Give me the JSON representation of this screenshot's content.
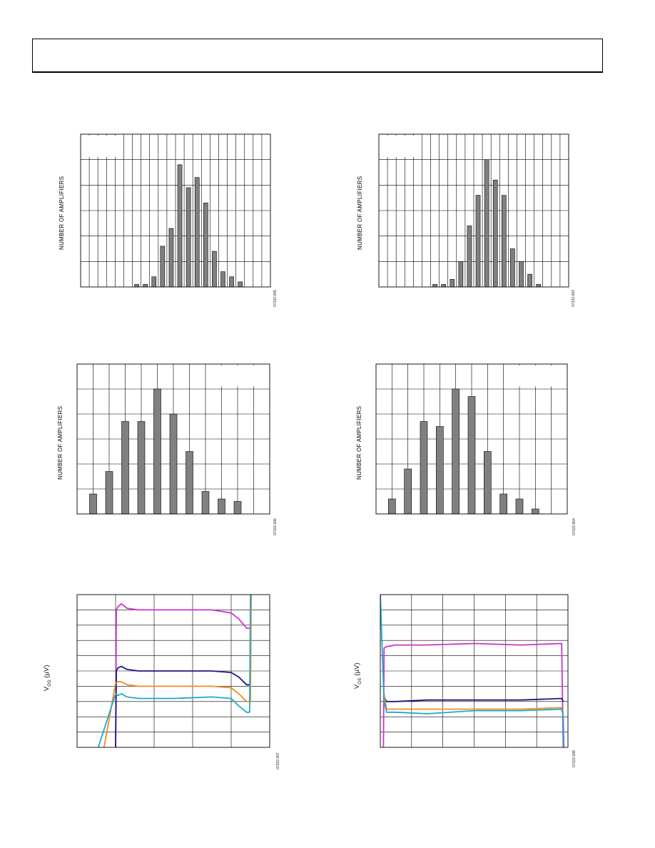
{
  "page": {
    "colors": {
      "bar_fill": "#808080",
      "grid": "#000000",
      "magenta": "#cc33cc",
      "navy": "#1a1a80",
      "orange": "#f08c1e",
      "cyan": "#1ea8c8"
    }
  },
  "chart_data": [
    {
      "type": "bar",
      "ylabel": "NUMBER OF AMPLIFIERS",
      "figure_id": "07322-005",
      "x": [
        6.5,
        7.5,
        8.5,
        9.5,
        10.5,
        11.5,
        12.5,
        13.5,
        14.5,
        15.5,
        16.5,
        17.5,
        18.5
      ],
      "values": [
        1,
        1,
        4,
        16,
        23,
        48,
        39,
        43,
        33,
        14,
        6,
        4,
        2
      ],
      "xlim": [
        0,
        22
      ],
      "ylim": [
        0,
        60
      ],
      "x_gridlines": 22,
      "y_gridlines": 6,
      "grid": true
    },
    {
      "type": "bar",
      "ylabel": "NUMBER OF AMPLIFIERS",
      "figure_id": "07322-003",
      "x": [
        6.5,
        7.5,
        8.5,
        9.5,
        10.5,
        11.5,
        12.5,
        13.5,
        14.5,
        15.5,
        16.5,
        17.5,
        18.5
      ],
      "values": [
        1,
        1,
        3,
        10,
        24,
        36,
        50,
        42,
        36,
        15,
        10,
        5,
        1
      ],
      "xlim": [
        0,
        22
      ],
      "ylim": [
        0,
        60
      ],
      "x_gridlines": 22,
      "y_gridlines": 6,
      "grid": true
    },
    {
      "type": "bar",
      "ylabel": "NUMBER OF AMPLIFIERS",
      "figure_id": "07322-006",
      "x": [
        1,
        2,
        3,
        4,
        5,
        6,
        7,
        8,
        9,
        10
      ],
      "values": [
        8,
        17,
        37,
        37,
        50,
        40,
        25,
        9,
        6,
        5
      ],
      "xlim": [
        0,
        12
      ],
      "ylim": [
        0,
        60
      ],
      "x_gridlines": 12,
      "y_gridlines": 6,
      "grid": true
    },
    {
      "type": "bar",
      "ylabel": "NUMBER OF AMPLIFIERS",
      "figure_id": "07322-004",
      "x": [
        1,
        2,
        3,
        4,
        5,
        6,
        7,
        8,
        9,
        10
      ],
      "values": [
        6,
        18,
        37,
        35,
        50,
        47,
        25,
        8,
        6,
        2
      ],
      "xlim": [
        0,
        12
      ],
      "ylim": [
        0,
        60
      ],
      "x_gridlines": 12,
      "y_gridlines": 6,
      "grid": true
    },
    {
      "type": "line",
      "ylabel_main": "V",
      "ylabel_sub": "OS",
      "ylabel_unit": " (µV)",
      "figure_id": "07322-007",
      "xlim": [
        0,
        5
      ],
      "ylim": [
        -40,
        60
      ],
      "x_gridlines": 5,
      "y_gridlines": 10,
      "grid": true,
      "series": [
        {
          "color": "#cc33cc",
          "x": [
            1.0,
            1.02,
            1.06,
            1.15,
            1.3,
            1.6,
            2.5,
            3.5,
            4.0,
            4.2,
            4.4,
            4.5,
            4.52
          ],
          "y": [
            -40,
            50,
            52,
            54,
            51,
            50,
            50,
            50,
            48,
            44,
            38,
            38,
            60
          ]
        },
        {
          "color": "#1a1a80",
          "x": [
            1.0,
            1.02,
            1.06,
            1.15,
            1.3,
            1.6,
            2.5,
            3.5,
            4.0,
            4.2,
            4.4,
            4.5
          ],
          "y": [
            -40,
            10,
            12,
            13,
            11,
            10,
            10,
            10,
            9,
            6,
            1,
            1
          ]
        },
        {
          "color": "#f08c1e",
          "x": [
            0.7,
            1.0,
            1.06,
            1.15,
            1.3,
            1.6,
            2.5,
            3.5,
            4.0,
            4.2,
            4.4,
            4.5,
            4.52
          ],
          "y": [
            -40,
            2,
            3,
            3,
            1,
            0,
            0,
            0,
            -1,
            -5,
            -10,
            -10,
            60
          ]
        },
        {
          "color": "#1ea8c8",
          "x": [
            0.55,
            1.0,
            1.06,
            1.15,
            1.3,
            1.6,
            2.5,
            3.5,
            4.0,
            4.2,
            4.4,
            4.48,
            4.5
          ],
          "y": [
            -40,
            -5,
            -6,
            -5,
            -7,
            -8,
            -8,
            -7,
            -8,
            -13,
            -17,
            -17,
            60
          ]
        }
      ]
    },
    {
      "type": "line",
      "ylabel_main": "V",
      "ylabel_sub": "OS",
      "ylabel_unit": " (µV)",
      "figure_id": "07322-008",
      "xlim": [
        0,
        6
      ],
      "ylim": [
        -40,
        60
      ],
      "x_gridlines": 6,
      "y_gridlines": 10,
      "grid": true,
      "series": [
        {
          "color": "#cc33cc",
          "x": [
            0.1,
            0.12,
            0.2,
            0.5,
            1.5,
            3.0,
            4.5,
            5.8,
            5.85
          ],
          "y": [
            -40,
            25,
            26,
            27,
            27,
            28,
            27,
            28,
            -40
          ]
        },
        {
          "color": "#1a1a80",
          "x": [
            0.12,
            0.2,
            0.5,
            1.5,
            3.0,
            4.5,
            5.8,
            5.85
          ],
          "y": [
            -7,
            -10,
            -10,
            -9,
            -9,
            -9,
            -8,
            -10
          ]
        },
        {
          "color": "#f08c1e",
          "x": [
            0.12,
            0.2,
            0.5,
            1.5,
            3.0,
            4.5,
            5.8,
            5.85
          ],
          "y": [
            -5,
            -15,
            -15,
            -15,
            -15,
            -15,
            -14,
            -18
          ]
        },
        {
          "color": "#1ea8c8",
          "x": [
            0.0,
            0.05,
            0.12,
            0.2,
            0.5,
            1.5,
            3.0,
            4.5,
            5.8,
            5.85,
            5.87
          ],
          "y": [
            60,
            30,
            -10,
            -17,
            -17,
            -18,
            -16,
            -16,
            -15,
            -20,
            -40
          ]
        }
      ]
    }
  ]
}
